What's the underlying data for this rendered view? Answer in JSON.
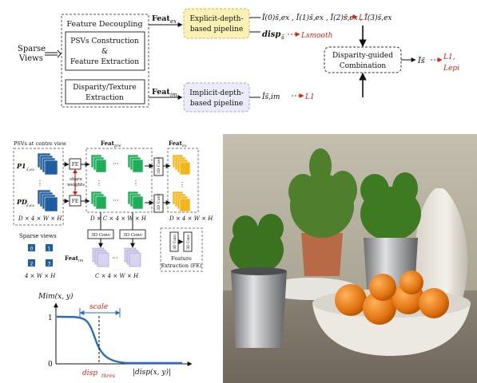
{
  "pipeline": {
    "input_label_1": "Sparse",
    "input_label_2": "Views",
    "feature_decoupling": "Feature Decoupling",
    "psv_line1": "PSVs Construction",
    "psv_line2": "&",
    "psv_line3": "Feature Extraction",
    "disp_line1": "Disparity/Texture",
    "disp_line2": "Extraction",
    "feat_ex": "Feat",
    "feat_ex_sub": "ex",
    "feat_im": "Feat",
    "feat_im_sub": "im",
    "explicit_line1": "Explicit-depth-",
    "explicit_line2": "based pipeline",
    "implicit_line1": "Implicit-depth-",
    "implicit_line2": "based pipeline",
    "combo_line1": "Disparity-guided",
    "combo_line2": "Combination",
    "out_explicit": "Ĩ(0)s̃,ex , Ĩ(1)s̃,ex , Ĩ(2)s̃,ex , Ĩ(3)s̃,ex",
    "out_disp": "disp",
    "out_disp_sub": "s̃",
    "out_implicit": "Ĩs̃,im",
    "out_final": "Ĩs̃",
    "loss_l1_a": "L1",
    "loss_smooth": "Lsmooth",
    "loss_l1_b": "L1",
    "loss_l1_c": "L1,",
    "loss_epi": "Lepi"
  },
  "fe_diagram": {
    "psv_title": "PSVs at centre view",
    "p1": "P1",
    "p1_sub": "s̃,ex",
    "pd": "PD",
    "pd_sub": "s̃,ex",
    "dims_psv": "D × 4 × W × H",
    "sparse_views": "Sparse views",
    "view_ids": [
      "0",
      "1",
      "2",
      "3"
    ],
    "dims_views": "4 × W × H",
    "fe": "FE",
    "share_weights_1": "share",
    "share_weights_2": "weights",
    "feat_pre": "Feat",
    "feat_pre_sub": "pre",
    "dims_pre": "D × C × 4 × W × H",
    "feat_ex": "Feat",
    "feat_ex_sub": "ex",
    "dims_ex": "D × 4 × W × H",
    "conv_3d": "3D Conv",
    "feat_im": "Feat",
    "feat_im_sub": "im",
    "dims_im": "C × 4 × W × H",
    "legend_fe_1": "Feature",
    "legend_fe_2": "Extraction (FE)",
    "dots": "···"
  },
  "sigmoid_plot": {
    "ylabel": "Mim(x, y)",
    "xlabel": "|disp(x, y)|",
    "y_one": "1",
    "y_zero": "0",
    "scale": "scale",
    "threshold": "disp",
    "threshold_sub": "thres"
  },
  "colors": {
    "explicit_box": "#fbf1b5",
    "implicit_box": "#ecebfa",
    "feat_pre_green": "#1fae57",
    "feat_ex_yellow": "#f2b71a",
    "feat_im_lavender": "#d9d4f0",
    "psv_blue": "#1f5ea0",
    "curve_blue": "#2a6fb5",
    "loss_red": "#d0241a"
  }
}
